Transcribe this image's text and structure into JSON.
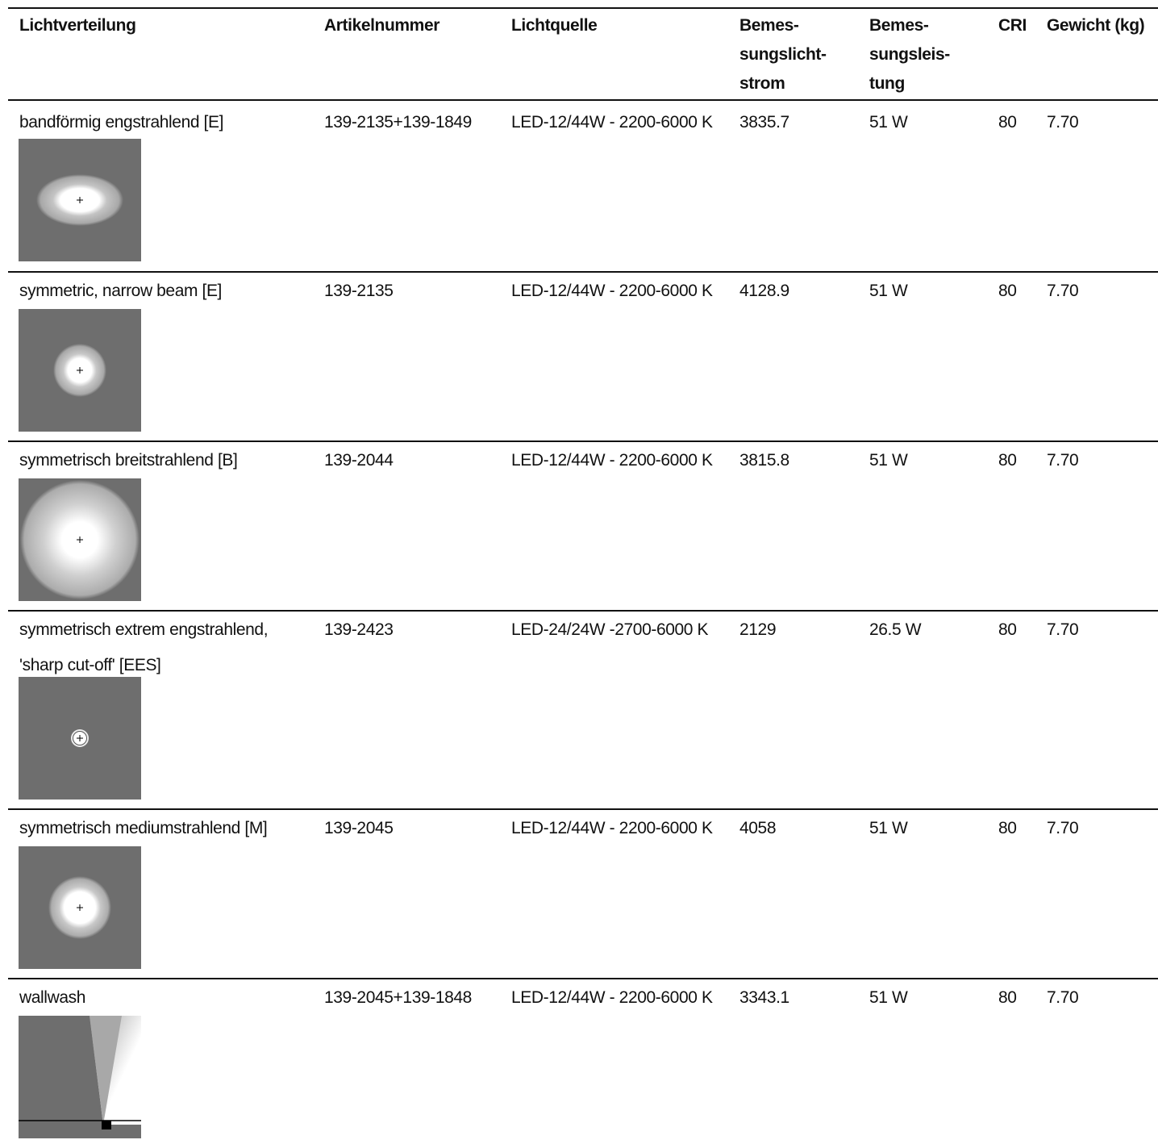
{
  "table": {
    "header": [
      "Lichtverteilung",
      "Artikelnummer",
      "Lichtquelle",
      "Bemes-\nsungslicht-\nstrom",
      "Bemes-\nsungsleis-\ntung",
      "CRI",
      "Gewicht (kg)"
    ],
    "rows": [
      [
        "bandförmig engstrahlend [E]",
        "139-2135+139-1849",
        "LED-12/44W - 2200-6000 K",
        "3835.7",
        "51 W",
        "80",
        "7.70"
      ],
      [
        "symmetric, narrow beam [E]",
        "139-2135",
        "LED-12/44W - 2200-6000 K",
        "4128.9",
        "51 W",
        "80",
        "7.70"
      ],
      [
        "symmetrisch breitstrahlend [B]",
        "139-2044",
        "LED-12/44W - 2200-6000 K",
        "3815.8",
        "51 W",
        "80",
        "7.70"
      ],
      [
        "symmetrisch extrem engstrahlend, 'sharp cut-off' [EES]",
        "139-2423",
        "LED-24/24W -2700-6000 K",
        "2129",
        "26.5 W",
        "80",
        "7.70"
      ],
      [
        "symmetrisch mediumstrahlend [M]",
        "139-2045",
        "LED-12/44W - 2200-6000 K",
        "4058",
        "51 W",
        "80",
        "7.70"
      ],
      [
        "wallwash",
        "139-2045+139-1848",
        "LED-12/44W - 2200-6000 K",
        "3343.1",
        "51 W",
        "80",
        "7.70"
      ]
    ]
  }
}
